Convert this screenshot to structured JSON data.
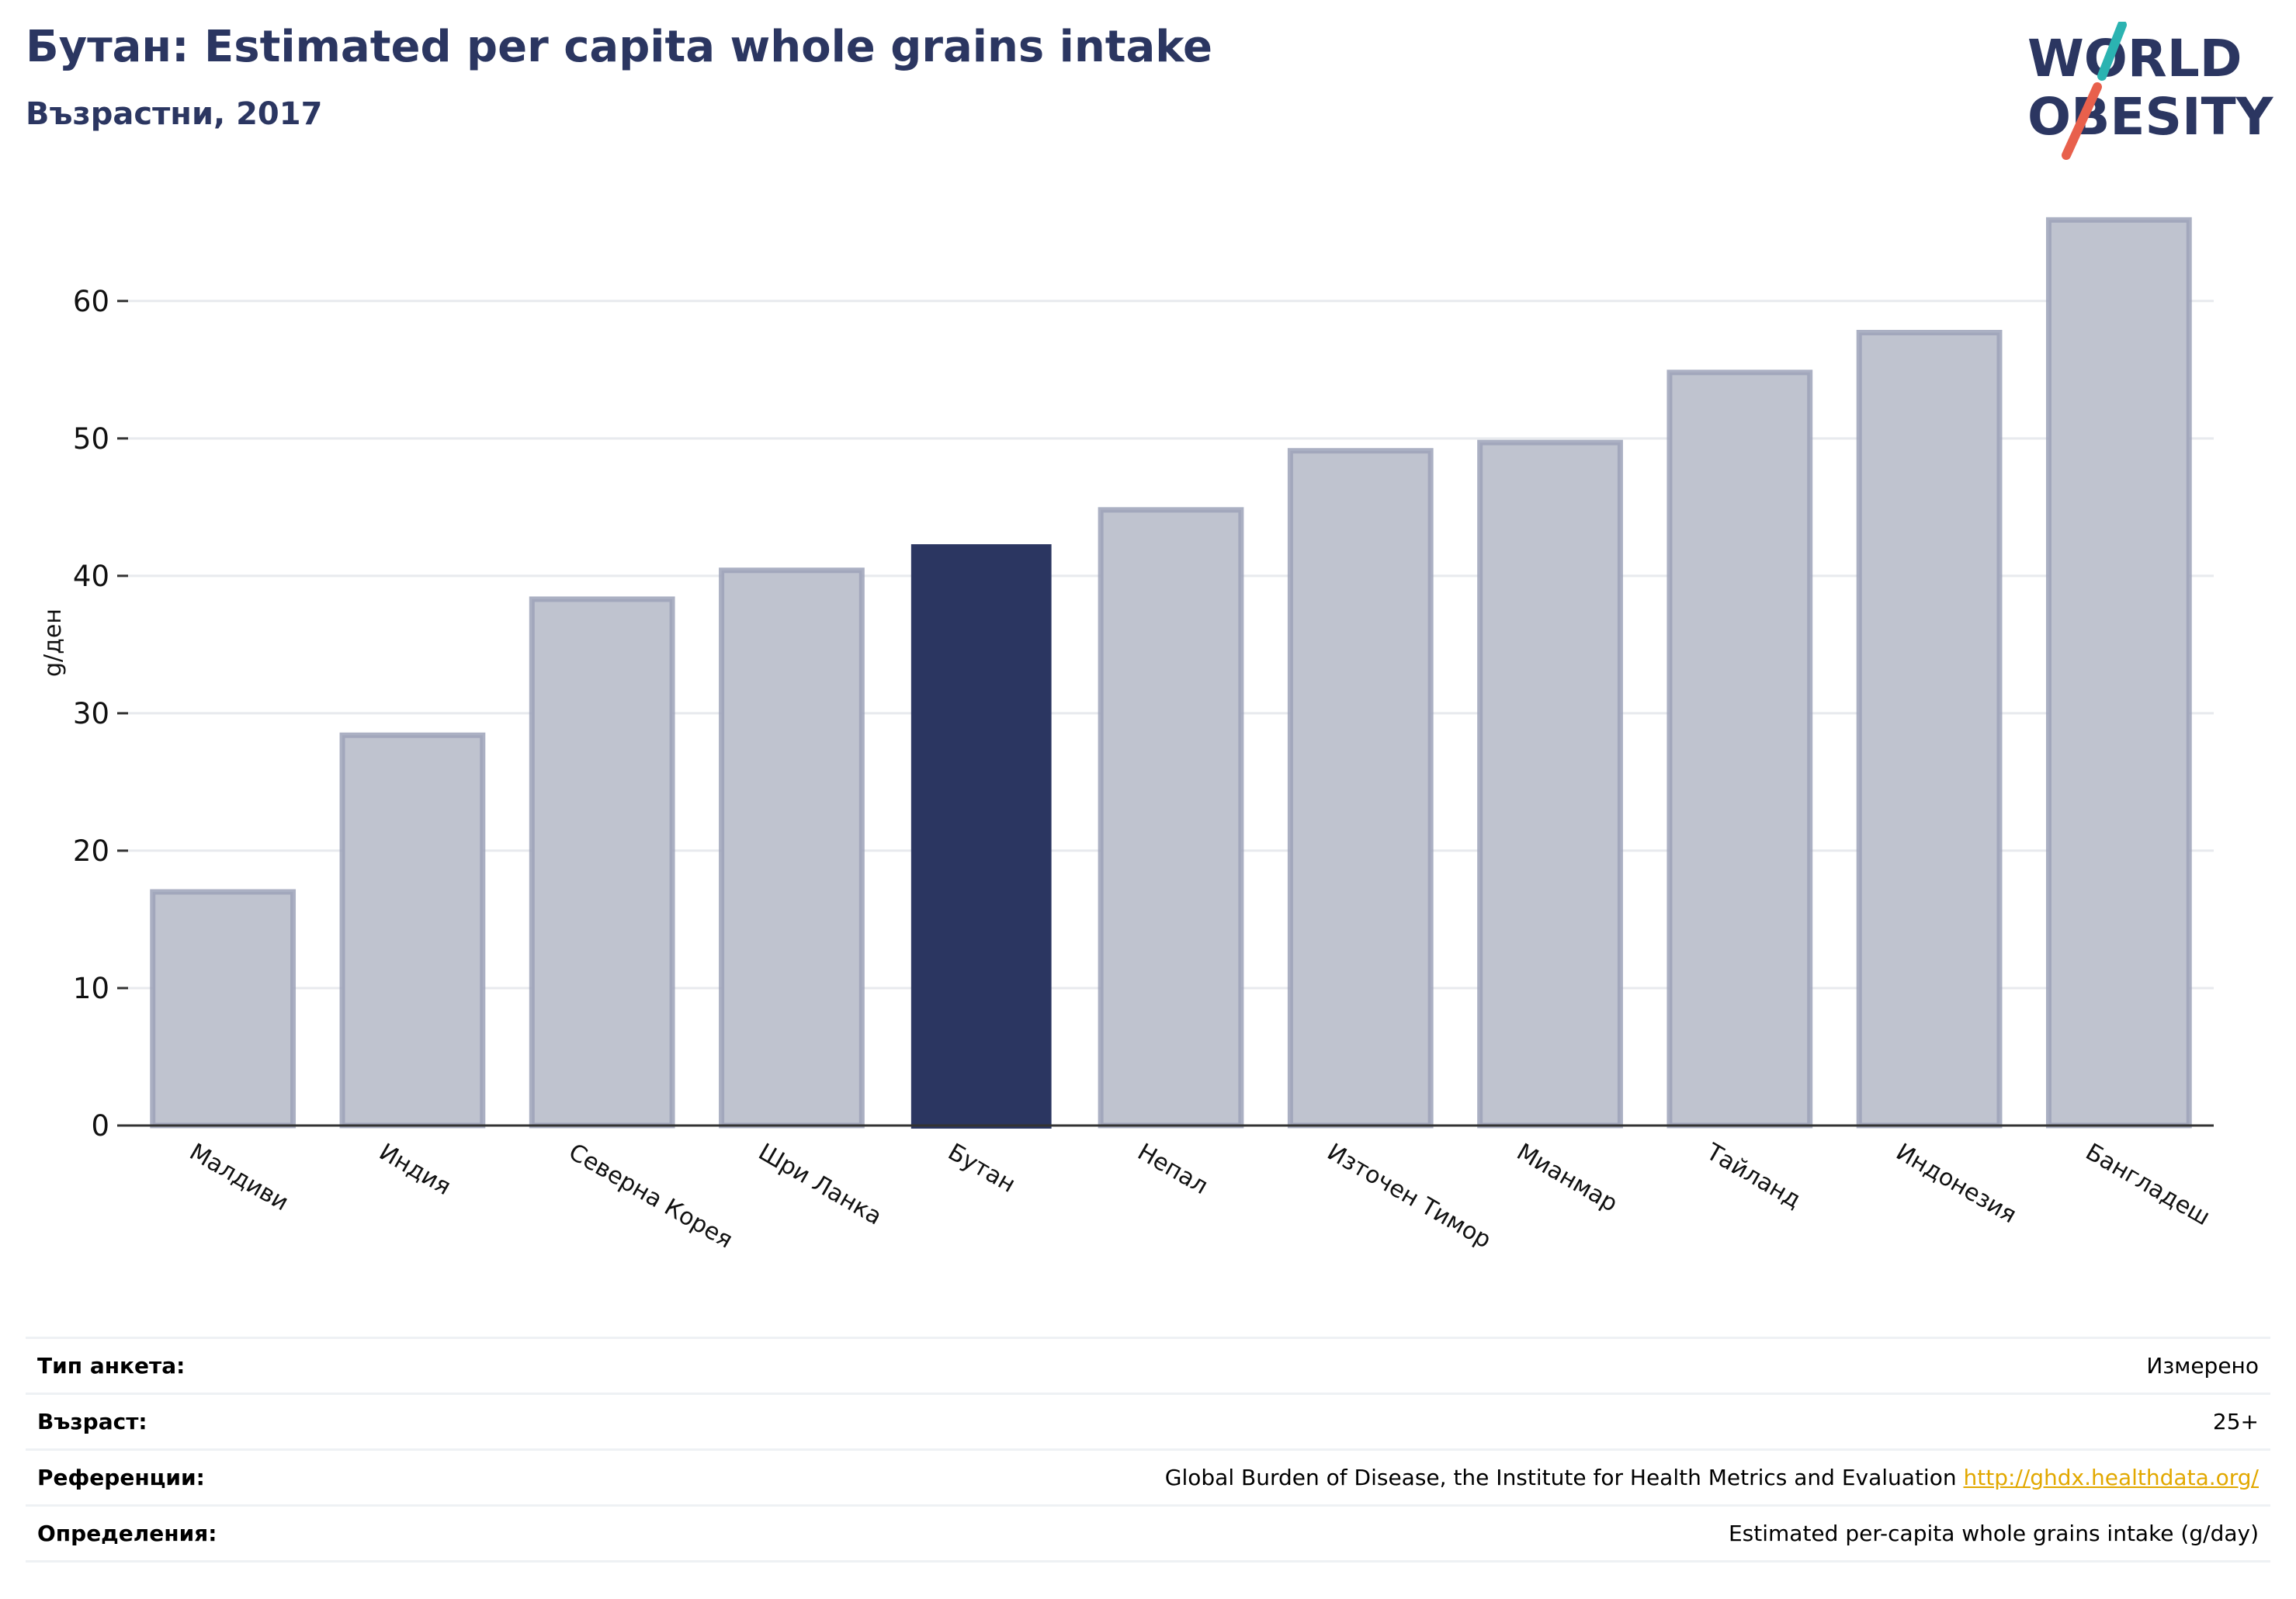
{
  "header": {
    "title": "Бутан: Estimated per capita whole grains intake",
    "subtitle": "Възрастни, 2017"
  },
  "logo": {
    "line1": "WORLD",
    "line2": "OBESITY",
    "slash_color_top": "#2bb3b1",
    "slash_color_bottom": "#e8604c",
    "text_color": "#2b3661"
  },
  "chart_data": {
    "type": "bar",
    "categories": [
      "Малдиви",
      "Индия",
      "Северна Корея",
      "Шри Ланка",
      "Бутан",
      "Непал",
      "Източен Тимор",
      "Мианмар",
      "Тайланд",
      "Индонезия",
      "Бангладеш"
    ],
    "values": [
      17.0,
      28.4,
      38.3,
      40.4,
      42.3,
      44.8,
      49.1,
      49.7,
      54.8,
      57.7,
      65.9
    ],
    "highlight": "Бутан",
    "ylabel": "g/ден",
    "xlabel": "",
    "ylim": [
      0,
      67.5
    ],
    "yticks": [
      0,
      10,
      20,
      30,
      40,
      50,
      60
    ],
    "grid": true,
    "colors": {
      "bar": "#bfc3cf",
      "bar_border": "#9ca2b8",
      "highlight": "#2b3661",
      "grid": "#e8eaee",
      "axis": "#333333"
    }
  },
  "info": {
    "rows": [
      {
        "label": "Тип анкета:",
        "value": "Измерено"
      },
      {
        "label": "Възраст:",
        "value": "25+"
      },
      {
        "label": "Референции:",
        "value": "Global Burden of Disease, the Institute for Health Metrics and Evaluation ",
        "link": "http://ghdx.healthdata.org/"
      },
      {
        "label": "Определения:",
        "value": "Estimated per-capita whole grains intake (g/day)"
      }
    ]
  }
}
